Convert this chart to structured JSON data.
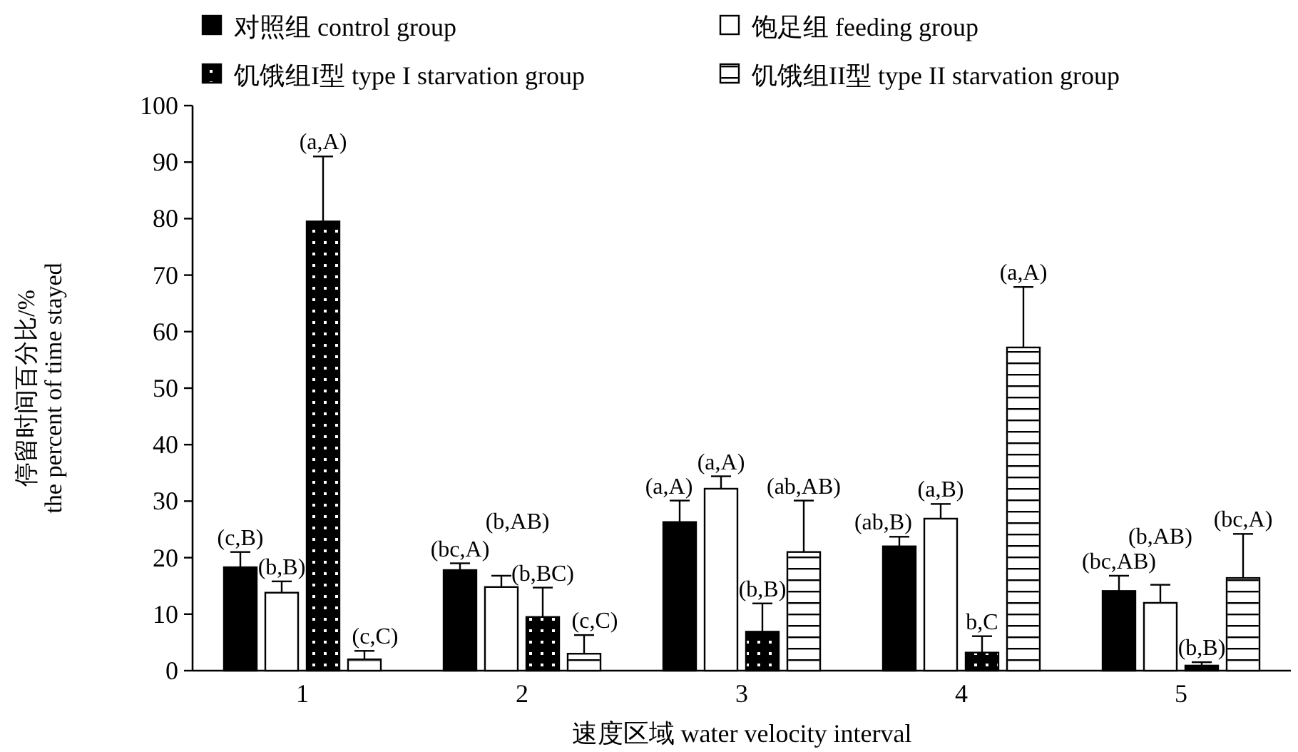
{
  "chart_data": {
    "type": "bar",
    "xlabel": "速度区域 water velocity interval",
    "ylabel": "停留时间百分比/% the percent of time stayed",
    "categories": [
      "1",
      "2",
      "3",
      "4",
      "5"
    ],
    "ylim": [
      0,
      100
    ],
    "yticks": [
      0,
      10,
      20,
      30,
      40,
      50,
      60,
      70,
      80,
      90,
      100
    ],
    "legend": "top",
    "grid": false,
    "series": [
      {
        "name": "对照组 control group",
        "color": "#000000",
        "values": [
          18.3,
          17.8,
          26.3,
          22,
          14.1
        ],
        "errors": [
          [
            18.3,
            21
          ],
          [
            17.8,
            19
          ],
          [
            26.3,
            30.1
          ],
          [
            22,
            23.7
          ],
          [
            14.1,
            16.8
          ]
        ],
        "value_labels": [
          "(c,B)",
          "(bc,A)",
          "(a,A)",
          "(ab,B)",
          "(bc,AB)"
        ]
      },
      {
        "name": "饱足组 feeding group",
        "color": "#ffffff",
        "values": [
          13.8,
          14.8,
          32.2,
          26.9,
          12
        ],
        "errors": [
          [
            13.8,
            15.8
          ],
          [
            14.8,
            16.8
          ],
          [
            32.2,
            34.4
          ],
          [
            26.9,
            29.5
          ],
          [
            12,
            15.2
          ]
        ],
        "value_labels": [
          "(b,B)",
          "(b,AB)",
          "(a,A)",
          "(a,B)",
          "(b,AB)"
        ]
      },
      {
        "name": "饥饿组I型 type I starvation group",
        "color": "#000000",
        "values": [
          79.5,
          9.5,
          6.9,
          3.2,
          0.9
        ],
        "errors": [
          [
            79.5,
            91
          ],
          [
            9.5,
            14.7
          ],
          [
            6.9,
            11.9
          ],
          [
            3.2,
            6.1
          ],
          [
            0.9,
            1.5
          ]
        ],
        "value_labels": [
          "(a,A)",
          "(b,BC)",
          "(b,B)",
          "b,C",
          "(b,B)"
        ]
      },
      {
        "name": "饥饿组II型 type II starvation group",
        "color": "#ffffff",
        "values": [
          2,
          3,
          21,
          57.2,
          16.4
        ],
        "errors": [
          [
            2,
            3.5
          ],
          [
            3,
            6.3
          ],
          [
            21,
            30.1
          ],
          [
            57.2,
            67.9
          ],
          [
            16.4,
            24.2
          ]
        ],
        "value_labels": [
          "(c,C)",
          "(c,C)",
          "(ab,AB)",
          "(a,A)",
          "(bc,A)"
        ]
      }
    ]
  }
}
